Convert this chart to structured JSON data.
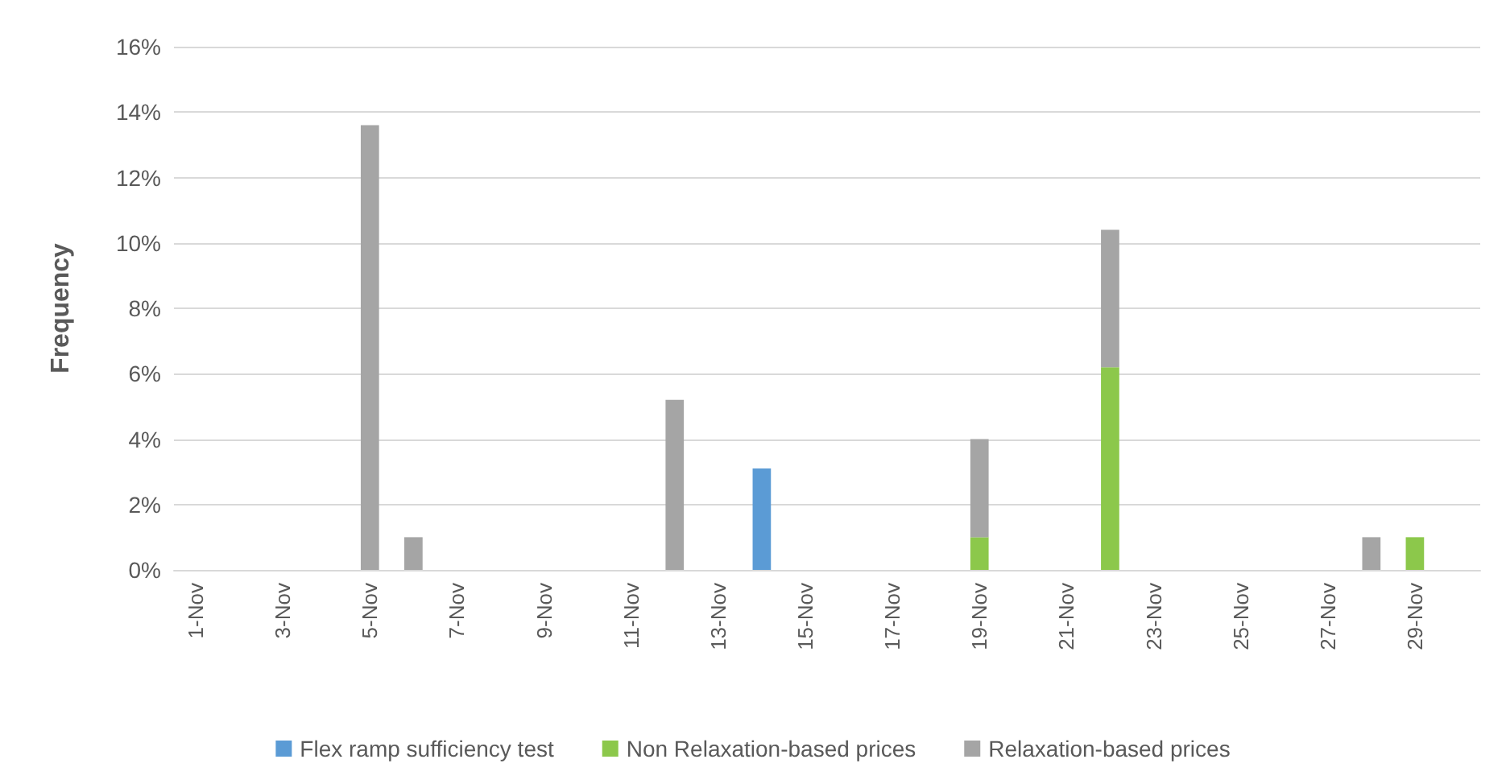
{
  "chart_data": {
    "type": "bar",
    "stacked": true,
    "ylabel": "Frequency",
    "categories": [
      "1-Nov",
      null,
      "3-Nov",
      null,
      "5-Nov",
      null,
      "7-Nov",
      null,
      "9-Nov",
      null,
      "11-Nov",
      null,
      "13-Nov",
      null,
      "15-Nov",
      null,
      "17-Nov",
      null,
      "19-Nov",
      null,
      "21-Nov",
      null,
      "23-Nov",
      null,
      "25-Nov",
      null,
      "27-Nov",
      null,
      "29-Nov",
      null
    ],
    "series": [
      {
        "name": "Flex ramp sufficiency test",
        "color": "#5b9bd5",
        "values": [
          0,
          0,
          0,
          0,
          0,
          0,
          0,
          0,
          0,
          0,
          0,
          0,
          0,
          3.1,
          0,
          0,
          0,
          0,
          0,
          0,
          0,
          0,
          0,
          0,
          0,
          0,
          0,
          0,
          0,
          0
        ]
      },
      {
        "name": "Non Relaxation-based prices",
        "color": "#8cc84b",
        "values": [
          0,
          0,
          0,
          0,
          0,
          0,
          0,
          0,
          0,
          0,
          0,
          0,
          0,
          0,
          0,
          0,
          0,
          0,
          1.0,
          0,
          0,
          6.2,
          0,
          0,
          0,
          0,
          0,
          0,
          1.0,
          0
        ]
      },
      {
        "name": "Relaxation-based prices",
        "color": "#a5a5a5",
        "values": [
          0,
          0,
          0,
          0,
          13.6,
          1.0,
          0,
          0,
          0,
          0,
          0,
          5.2,
          0,
          0,
          0,
          0,
          0,
          0,
          3.0,
          0,
          0,
          4.2,
          0,
          0,
          0,
          0,
          0,
          1.0,
          0,
          0
        ]
      }
    ],
    "ylim": [
      0,
      16
    ],
    "yticks": [
      {
        "value": 0,
        "label": "0%"
      },
      {
        "value": 2,
        "label": "2%"
      },
      {
        "value": 4,
        "label": "4%"
      },
      {
        "value": 6,
        "label": "6%"
      },
      {
        "value": 8,
        "label": "8%"
      },
      {
        "value": 10,
        "label": "10%"
      },
      {
        "value": 12,
        "label": "12%"
      },
      {
        "value": 14,
        "label": "14%"
      },
      {
        "value": 16,
        "label": "16%"
      }
    ],
    "grid": "y",
    "legend": "bottom"
  }
}
